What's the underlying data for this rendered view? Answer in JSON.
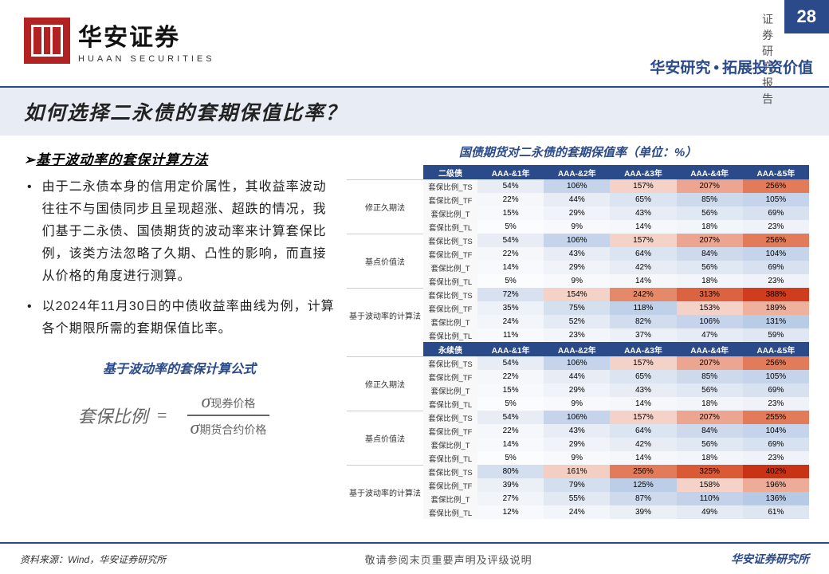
{
  "header": {
    "logo_cn": "华安证券",
    "logo_en": "HUAAN SECURITIES",
    "report_label": "证券研究报告",
    "page_num": "28",
    "tagline_left": "华安研究",
    "tagline_right": "拓展投资价值"
  },
  "title": "如何选择二永债的套期保值比率？",
  "method_heading": "基于波动率的套保计算方法",
  "bullets": [
    "由于二永债本身的信用定价属性，其收益率波动往往不与国债同步且呈现超涨、超跌的情况，我们基于二永债、国债期货的波动率来计算套保比例，该类方法忽略了久期、凸性的影响，而直接从价格的角度进行测算。",
    "以2024年11月30日的中债收益率曲线为例，计算各个期限所需的套期保值比率。"
  ],
  "formula_title": "基于波动率的套保计算公式",
  "formula": {
    "lhs": "套保比例",
    "eq": "=",
    "num_sub": "现券价格",
    "den_sub": "期货合约价格"
  },
  "table_title": "国债期货对二永债的套期保值率（单位：%）",
  "table": {
    "col_headers": [
      "AAA-&1年",
      "AAA-&2年",
      "AAA-&3年",
      "AAA-&4年",
      "AAA-&5年"
    ],
    "ratio_labels": [
      "套保比例_TS",
      "套保比例_TF",
      "套保比例_T",
      "套保比例_TL"
    ],
    "sections": [
      {
        "name": "二级债",
        "header_bg": "#2a4a8a",
        "methods": [
          {
            "name": "修正久期法",
            "rows": [
              [
                {
                  "v": "54%",
                  "c": "#e8edf5"
                },
                {
                  "v": "106%",
                  "c": "#c5d4ea"
                },
                {
                  "v": "157%",
                  "c": "#f4d2c8"
                },
                {
                  "v": "207%",
                  "c": "#eba590"
                },
                {
                  "v": "256%",
                  "c": "#e27b5a"
                }
              ],
              [
                {
                  "v": "22%",
                  "c": "#f5f7fb"
                },
                {
                  "v": "44%",
                  "c": "#e8edf5"
                },
                {
                  "v": "65%",
                  "c": "#dbe4f1"
                },
                {
                  "v": "85%",
                  "c": "#cddaec"
                },
                {
                  "v": "105%",
                  "c": "#c5d4ea"
                }
              ],
              [
                {
                  "v": "15%",
                  "c": "#f8f9fc"
                },
                {
                  "v": "29%",
                  "c": "#f0f3f9"
                },
                {
                  "v": "43%",
                  "c": "#e8edf5"
                },
                {
                  "v": "56%",
                  "c": "#e0e8f3"
                },
                {
                  "v": "69%",
                  "c": "#d7e1f0"
                }
              ],
              [
                {
                  "v": "5%",
                  "c": "#fbfcfd"
                },
                {
                  "v": "9%",
                  "c": "#f8f9fc"
                },
                {
                  "v": "14%",
                  "c": "#f5f7fb"
                },
                {
                  "v": "18%",
                  "c": "#f2f5fa"
                },
                {
                  "v": "23%",
                  "c": "#eff2f8"
                }
              ]
            ]
          },
          {
            "name": "基点价值法",
            "rows": [
              [
                {
                  "v": "54%",
                  "c": "#e8edf5"
                },
                {
                  "v": "106%",
                  "c": "#c5d4ea"
                },
                {
                  "v": "157%",
                  "c": "#f4d2c8"
                },
                {
                  "v": "207%",
                  "c": "#eba590"
                },
                {
                  "v": "256%",
                  "c": "#e27b5a"
                }
              ],
              [
                {
                  "v": "22%",
                  "c": "#f5f7fb"
                },
                {
                  "v": "43%",
                  "c": "#e8edf5"
                },
                {
                  "v": "64%",
                  "c": "#dbe4f1"
                },
                {
                  "v": "84%",
                  "c": "#cedaec"
                },
                {
                  "v": "104%",
                  "c": "#c5d4ea"
                }
              ],
              [
                {
                  "v": "14%",
                  "c": "#f8f9fc"
                },
                {
                  "v": "29%",
                  "c": "#f0f3f9"
                },
                {
                  "v": "42%",
                  "c": "#e8edf5"
                },
                {
                  "v": "56%",
                  "c": "#e0e8f3"
                },
                {
                  "v": "69%",
                  "c": "#d7e1f0"
                }
              ],
              [
                {
                  "v": "5%",
                  "c": "#fbfcfd"
                },
                {
                  "v": "9%",
                  "c": "#f8f9fc"
                },
                {
                  "v": "14%",
                  "c": "#f5f7fb"
                },
                {
                  "v": "18%",
                  "c": "#f2f5fa"
                },
                {
                  "v": "23%",
                  "c": "#eff2f8"
                }
              ]
            ]
          },
          {
            "name": "基于波动率的计算法",
            "rows": [
              [
                {
                  "v": "72%",
                  "c": "#d7e1f0"
                },
                {
                  "v": "154%",
                  "c": "#f4d2c8"
                },
                {
                  "v": "242%",
                  "c": "#e58968"
                },
                {
                  "v": "313%",
                  "c": "#db6340"
                },
                {
                  "v": "388%",
                  "c": "#cf3c1e"
                }
              ],
              [
                {
                  "v": "35%",
                  "c": "#edf1f8"
                },
                {
                  "v": "75%",
                  "c": "#d5e0ef"
                },
                {
                  "v": "118%",
                  "c": "#bfd1e8"
                },
                {
                  "v": "153%",
                  "c": "#f4d2c8"
                },
                {
                  "v": "189%",
                  "c": "#edb19e"
                }
              ],
              [
                {
                  "v": "24%",
                  "c": "#f2f5fa"
                },
                {
                  "v": "52%",
                  "c": "#e4ebf4"
                },
                {
                  "v": "82%",
                  "c": "#d1ddee"
                },
                {
                  "v": "106%",
                  "c": "#c5d4ea"
                },
                {
                  "v": "131%",
                  "c": "#b9cce6"
                }
              ],
              [
                {
                  "v": "11%",
                  "c": "#f8f9fc"
                },
                {
                  "v": "23%",
                  "c": "#f2f5fa"
                },
                {
                  "v": "37%",
                  "c": "#ecf0f7"
                },
                {
                  "v": "47%",
                  "c": "#e6ecf5"
                },
                {
                  "v": "59%",
                  "c": "#dfe7f3"
                }
              ]
            ]
          }
        ]
      },
      {
        "name": "永续债",
        "header_bg": "#2a4a8a",
        "methods": [
          {
            "name": "修正久期法",
            "rows": [
              [
                {
                  "v": "54%",
                  "c": "#e8edf5"
                },
                {
                  "v": "106%",
                  "c": "#c5d4ea"
                },
                {
                  "v": "157%",
                  "c": "#f4d2c8"
                },
                {
                  "v": "207%",
                  "c": "#eba590"
                },
                {
                  "v": "256%",
                  "c": "#e27b5a"
                }
              ],
              [
                {
                  "v": "22%",
                  "c": "#f5f7fb"
                },
                {
                  "v": "44%",
                  "c": "#e8edf5"
                },
                {
                  "v": "65%",
                  "c": "#dbe4f1"
                },
                {
                  "v": "85%",
                  "c": "#cddaec"
                },
                {
                  "v": "105%",
                  "c": "#c5d4ea"
                }
              ],
              [
                {
                  "v": "15%",
                  "c": "#f8f9fc"
                },
                {
                  "v": "29%",
                  "c": "#f0f3f9"
                },
                {
                  "v": "43%",
                  "c": "#e8edf5"
                },
                {
                  "v": "56%",
                  "c": "#e0e8f3"
                },
                {
                  "v": "69%",
                  "c": "#d7e1f0"
                }
              ],
              [
                {
                  "v": "5%",
                  "c": "#fbfcfd"
                },
                {
                  "v": "9%",
                  "c": "#f8f9fc"
                },
                {
                  "v": "14%",
                  "c": "#f5f7fb"
                },
                {
                  "v": "18%",
                  "c": "#f2f5fa"
                },
                {
                  "v": "23%",
                  "c": "#eff2f8"
                }
              ]
            ]
          },
          {
            "name": "基点价值法",
            "rows": [
              [
                {
                  "v": "54%",
                  "c": "#e8edf5"
                },
                {
                  "v": "106%",
                  "c": "#c5d4ea"
                },
                {
                  "v": "157%",
                  "c": "#f4d2c8"
                },
                {
                  "v": "207%",
                  "c": "#eba590"
                },
                {
                  "v": "255%",
                  "c": "#e27b5a"
                }
              ],
              [
                {
                  "v": "22%",
                  "c": "#f5f7fb"
                },
                {
                  "v": "43%",
                  "c": "#e8edf5"
                },
                {
                  "v": "64%",
                  "c": "#dbe4f1"
                },
                {
                  "v": "84%",
                  "c": "#cedaec"
                },
                {
                  "v": "104%",
                  "c": "#c5d4ea"
                }
              ],
              [
                {
                  "v": "14%",
                  "c": "#f8f9fc"
                },
                {
                  "v": "29%",
                  "c": "#f0f3f9"
                },
                {
                  "v": "42%",
                  "c": "#e8edf5"
                },
                {
                  "v": "56%",
                  "c": "#e0e8f3"
                },
                {
                  "v": "69%",
                  "c": "#d7e1f0"
                }
              ],
              [
                {
                  "v": "5%",
                  "c": "#fbfcfd"
                },
                {
                  "v": "9%",
                  "c": "#f8f9fc"
                },
                {
                  "v": "14%",
                  "c": "#f5f7fb"
                },
                {
                  "v": "18%",
                  "c": "#f2f5fa"
                },
                {
                  "v": "23%",
                  "c": "#eff2f8"
                }
              ]
            ]
          },
          {
            "name": "基于波动率的计算法",
            "rows": [
              [
                {
                  "v": "80%",
                  "c": "#d3deee"
                },
                {
                  "v": "161%",
                  "c": "#f3cec3"
                },
                {
                  "v": "256%",
                  "c": "#e27b5a"
                },
                {
                  "v": "325%",
                  "c": "#d95a35"
                },
                {
                  "v": "402%",
                  "c": "#c83315"
                }
              ],
              [
                {
                  "v": "39%",
                  "c": "#ebf0f7"
                },
                {
                  "v": "79%",
                  "c": "#d3deee"
                },
                {
                  "v": "125%",
                  "c": "#bccee7"
                },
                {
                  "v": "158%",
                  "c": "#f4d2c8"
                },
                {
                  "v": "196%",
                  "c": "#ecac98"
                }
              ],
              [
                {
                  "v": "27%",
                  "c": "#f1f4f9"
                },
                {
                  "v": "55%",
                  "c": "#e2e9f3"
                },
                {
                  "v": "87%",
                  "c": "#cfdbed"
                },
                {
                  "v": "110%",
                  "c": "#c3d2e9"
                },
                {
                  "v": "136%",
                  "c": "#b7cae5"
                }
              ],
              [
                {
                  "v": "12%",
                  "c": "#f7f9fc"
                },
                {
                  "v": "24%",
                  "c": "#f2f5fa"
                },
                {
                  "v": "39%",
                  "c": "#ebf0f7"
                },
                {
                  "v": "49%",
                  "c": "#e5ebf4"
                },
                {
                  "v": "61%",
                  "c": "#dee6f2"
                }
              ]
            ]
          }
        ]
      }
    ]
  },
  "footer": {
    "left": "资料来源：Wind，华安证券研究所",
    "mid": "敬请参阅末页重要声明及评级说明",
    "right": "华安证券研究所"
  }
}
